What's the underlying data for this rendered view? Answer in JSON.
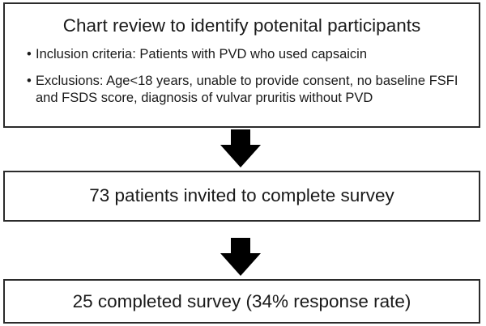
{
  "flowchart": {
    "steps": [
      {
        "title": "Chart review to identify potenital participants",
        "bullets": [
          "Inclusion criteria: Patients with PVD who used capsaicin",
          "Exclusions: Age<18 years, unable to provide consent, no baseline FSFI and FSDS score, diagnosis of vulvar pruritis without PVD"
        ]
      },
      {
        "title": "73 patients invited to complete survey"
      },
      {
        "title": "25 completed survey (34% response rate)"
      }
    ],
    "bullet_symbol": "•",
    "colors": {
      "border": "#2b2b2b",
      "arrow": "#000000",
      "text": "#1a1a1a"
    }
  }
}
